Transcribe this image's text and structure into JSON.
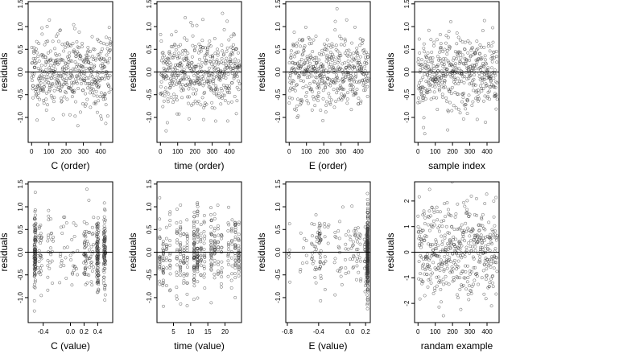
{
  "chart_data": [
    {
      "type": "scatter",
      "xlabel": "C (order)",
      "ylabel": "residuals",
      "xlim": [
        -20,
        470
      ],
      "ylim": [
        -1.55,
        1.55
      ],
      "xticks": [
        0,
        100,
        200,
        300,
        400
      ],
      "xtick_labels": [
        "0",
        "100",
        "200",
        "300",
        "400"
      ],
      "yticks": [
        -1.0,
        -0.5,
        0.0,
        0.5,
        1.0,
        1.5
      ],
      "ytick_labels": [
        "-1.0",
        "-0.5",
        "0.0",
        "0.5",
        "1.0",
        "1.5"
      ],
      "reference_line": 0,
      "points": {
        "kind": "order",
        "n": 460,
        "seed": 11,
        "sd": 0.42
      }
    },
    {
      "type": "scatter",
      "xlabel": "time (order)",
      "ylabel": "residuals",
      "xlim": [
        -20,
        470
      ],
      "ylim": [
        -1.55,
        1.55
      ],
      "xticks": [
        0,
        100,
        200,
        300,
        400
      ],
      "xtick_labels": [
        "0",
        "100",
        "200",
        "300",
        "400"
      ],
      "yticks": [
        -1.0,
        -0.5,
        0.0,
        0.5,
        1.0,
        1.5
      ],
      "ytick_labels": [
        "-1.0",
        "-0.5",
        "0.0",
        "0.5",
        "1.0",
        "1.5"
      ],
      "reference_line": 0,
      "points": {
        "kind": "order",
        "n": 460,
        "seed": 12,
        "sd": 0.42
      }
    },
    {
      "type": "scatter",
      "xlabel": "E (order)",
      "ylabel": "residuals",
      "xlim": [
        -20,
        470
      ],
      "ylim": [
        -1.55,
        1.55
      ],
      "xticks": [
        0,
        100,
        200,
        300,
        400
      ],
      "xtick_labels": [
        "0",
        "100",
        "200",
        "300",
        "400"
      ],
      "yticks": [
        -1.0,
        -0.5,
        0.0,
        0.5,
        1.0,
        1.5
      ],
      "ytick_labels": [
        "-1.0",
        "-0.5",
        "0.0",
        "0.5",
        "1.0",
        "1.5"
      ],
      "reference_line": 0,
      "points": {
        "kind": "order",
        "n": 460,
        "seed": 13,
        "sd": 0.42
      }
    },
    {
      "type": "scatter",
      "xlabel": "sample index",
      "ylabel": "residuals",
      "xlim": [
        -20,
        470
      ],
      "ylim": [
        -1.55,
        1.55
      ],
      "xticks": [
        0,
        100,
        200,
        300,
        400
      ],
      "xtick_labels": [
        "0",
        "100",
        "200",
        "300",
        "400"
      ],
      "yticks": [
        -1.0,
        -0.5,
        0.0,
        0.5,
        1.0,
        1.5
      ],
      "ytick_labels": [
        "-1.0",
        "-0.5",
        "0.0",
        "0.5",
        "1.0",
        "1.5"
      ],
      "reference_line": 0,
      "points": {
        "kind": "order",
        "n": 460,
        "seed": 14,
        "sd": 0.42
      }
    },
    {
      "type": "scatter",
      "xlabel": "C (value)",
      "ylabel": "residuals",
      "xlim": [
        -0.62,
        0.62
      ],
      "ylim": [
        -1.55,
        1.55
      ],
      "xticks": [
        -0.4,
        0.0,
        0.2,
        0.4
      ],
      "xtick_labels": [
        "-0.4",
        "0.0",
        "0.2",
        "0.4"
      ],
      "yticks": [
        -1.0,
        -0.5,
        0.0,
        0.5,
        1.0,
        1.5
      ],
      "ytick_labels": [
        "-1.0",
        "-0.5",
        "0.0",
        "0.5",
        "1.0",
        "1.5"
      ],
      "reference_line": 0,
      "points": {
        "kind": "value",
        "n": 460,
        "seed": 21,
        "sd": 0.42,
        "clusters": [
          {
            "x": -0.52,
            "w": 4,
            "j": 0.012
          },
          {
            "x": -0.45,
            "w": 1,
            "j": 0.03
          },
          {
            "x": -0.3,
            "w": 1,
            "j": 0.05
          },
          {
            "x": -0.1,
            "w": 0.7,
            "j": 0.06
          },
          {
            "x": 0.05,
            "w": 0.7,
            "j": 0.06
          },
          {
            "x": 0.22,
            "w": 1.3,
            "j": 0.03
          },
          {
            "x": 0.3,
            "w": 0.8,
            "j": 0.04
          },
          {
            "x": 0.4,
            "w": 3,
            "j": 0.015
          },
          {
            "x": 0.5,
            "w": 3.5,
            "j": 0.015
          }
        ]
      }
    },
    {
      "type": "scatter",
      "xlabel": "time (value)",
      "ylabel": "residuals",
      "xlim": [
        0.2,
        24.8
      ],
      "ylim": [
        -1.55,
        1.55
      ],
      "xticks": [
        5,
        10,
        15,
        20
      ],
      "xtick_labels": [
        "5",
        "10",
        "15",
        "20"
      ],
      "yticks": [
        -1.0,
        -0.5,
        0.0,
        0.5,
        1.0,
        1.5
      ],
      "ytick_labels": [
        "-1.0",
        "-0.5",
        "0.0",
        "0.5",
        "1.0",
        "1.5"
      ],
      "reference_line": 0,
      "points": {
        "kind": "value",
        "n": 460,
        "seed": 22,
        "sd": 0.42,
        "clusters": [
          {
            "x": 1,
            "w": 1,
            "j": 0.1
          },
          {
            "x": 2,
            "w": 1,
            "j": 0.1
          },
          {
            "x": 3,
            "w": 1,
            "j": 0.1
          },
          {
            "x": 4,
            "w": 1,
            "j": 0.1
          },
          {
            "x": 6,
            "w": 1.2,
            "j": 0.1
          },
          {
            "x": 7,
            "w": 1.2,
            "j": 0.1
          },
          {
            "x": 8,
            "w": 1,
            "j": 0.1
          },
          {
            "x": 9,
            "w": 1,
            "j": 0.1
          },
          {
            "x": 11,
            "w": 3,
            "j": 0.08
          },
          {
            "x": 12,
            "w": 3,
            "j": 0.08
          },
          {
            "x": 13,
            "w": 1,
            "j": 0.1
          },
          {
            "x": 14,
            "w": 1,
            "j": 0.1
          },
          {
            "x": 16,
            "w": 1.5,
            "j": 0.1
          },
          {
            "x": 17,
            "w": 1.5,
            "j": 0.1
          },
          {
            "x": 18,
            "w": 1,
            "j": 0.1
          },
          {
            "x": 19,
            "w": 1,
            "j": 0.1
          },
          {
            "x": 21,
            "w": 1.2,
            "j": 0.1
          },
          {
            "x": 22,
            "w": 1.2,
            "j": 0.1
          },
          {
            "x": 23,
            "w": 1.8,
            "j": 0.1
          },
          {
            "x": 24,
            "w": 1.8,
            "j": 0.08
          }
        ]
      }
    },
    {
      "type": "scatter",
      "xlabel": "E (value)",
      "ylabel": "residuals",
      "xlim": [
        -0.82,
        0.26
      ],
      "ylim": [
        -1.55,
        1.55
      ],
      "xticks": [
        -0.8,
        -0.4,
        0.0,
        0.2
      ],
      "xtick_labels": [
        "-0.8",
        "-0.4",
        "0.0",
        "0.2"
      ],
      "yticks": [
        -1.0,
        -0.5,
        0.0,
        0.5,
        1.0,
        1.5
      ],
      "ytick_labels": [
        "-1.0",
        "-0.5",
        "0.0",
        "0.5",
        "1.0",
        "1.5"
      ],
      "reference_line": 0,
      "points": {
        "kind": "value",
        "n": 460,
        "seed": 23,
        "sd": 0.42,
        "clusters": [
          {
            "x": -0.78,
            "w": 0.2,
            "j": 0.02
          },
          {
            "x": -0.6,
            "w": 0.3,
            "j": 0.05
          },
          {
            "x": -0.45,
            "w": 0.5,
            "j": 0.04
          },
          {
            "x": -0.38,
            "w": 0.8,
            "j": 0.015
          },
          {
            "x": -0.3,
            "w": 0.3,
            "j": 0.04
          },
          {
            "x": -0.15,
            "w": 0.6,
            "j": 0.06
          },
          {
            "x": 0.0,
            "w": 0.6,
            "j": 0.06
          },
          {
            "x": 0.1,
            "w": 0.6,
            "j": 0.04
          },
          {
            "x": 0.2,
            "w": 0.8,
            "j": 0.015
          },
          {
            "x": 0.225,
            "w": 7,
            "j": 0.004
          }
        ]
      }
    },
    {
      "type": "scatter",
      "xlabel": "randam example",
      "ylabel": "residuals",
      "xlim": [
        -20,
        470
      ],
      "ylim": [
        -2.75,
        2.75
      ],
      "xticks": [
        0,
        100,
        200,
        300,
        400
      ],
      "xtick_labels": [
        "0",
        "100",
        "200",
        "300",
        "400"
      ],
      "yticks": [
        -2,
        -1,
        0,
        1,
        2
      ],
      "ytick_labels": [
        "-2",
        "-1",
        "0",
        "1",
        "2"
      ],
      "reference_line": 0,
      "points": {
        "kind": "order",
        "n": 460,
        "seed": 31,
        "sd": 1.0
      }
    }
  ]
}
